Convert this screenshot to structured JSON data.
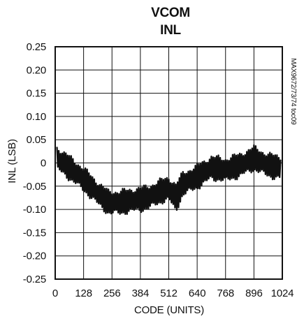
{
  "chart_data": {
    "type": "line",
    "title_lines": [
      "VCOM",
      "INL"
    ],
    "xlabel": "CODE (UNITS)",
    "ylabel": "INL (LSB)",
    "xlim": [
      0,
      1024
    ],
    "ylim": [
      -0.25,
      0.25
    ],
    "x_ticks": [
      0,
      128,
      256,
      384,
      512,
      640,
      768,
      896,
      1024
    ],
    "x_tick_labels": [
      "0",
      "128",
      "256",
      "384",
      "512",
      "640",
      "768",
      "896",
      "1024"
    ],
    "y_ticks": [
      0.25,
      0.2,
      0.15,
      0.1,
      0.05,
      0,
      -0.05,
      -0.1,
      -0.15,
      -0.2,
      -0.25
    ],
    "y_tick_labels": [
      "0.25",
      "0.20",
      "0.15",
      "0.10",
      "0.05",
      "0",
      "-0.05",
      "-0.10",
      "-0.15",
      "-0.20",
      "-0.25"
    ],
    "grid": true,
    "watermark": "MAX9672/73/74 toc09",
    "series": [
      {
        "trace_envelope": {
          "code": [
            8,
            64,
            128,
            192,
            240,
            288,
            352,
            416,
            480,
            512,
            544,
            576,
            640,
            704,
            768,
            832,
            896,
            960,
            1016
          ],
          "inl_center": [
            0.01,
            -0.01,
            -0.035,
            -0.065,
            -0.085,
            -0.085,
            -0.08,
            -0.075,
            -0.06,
            -0.055,
            -0.075,
            -0.045,
            -0.03,
            -0.01,
            -0.015,
            -0.005,
            0.01,
            -0.005,
            -0.01
          ],
          "inl_peak_to_peak": [
            0.045,
            0.045,
            0.045,
            0.045,
            0.045,
            0.045,
            0.045,
            0.045,
            0.045,
            0.045,
            0.055,
            0.045,
            0.045,
            0.045,
            0.045,
            0.045,
            0.045,
            0.045,
            0.045
          ]
        },
        "color": "#111111"
      }
    ]
  }
}
